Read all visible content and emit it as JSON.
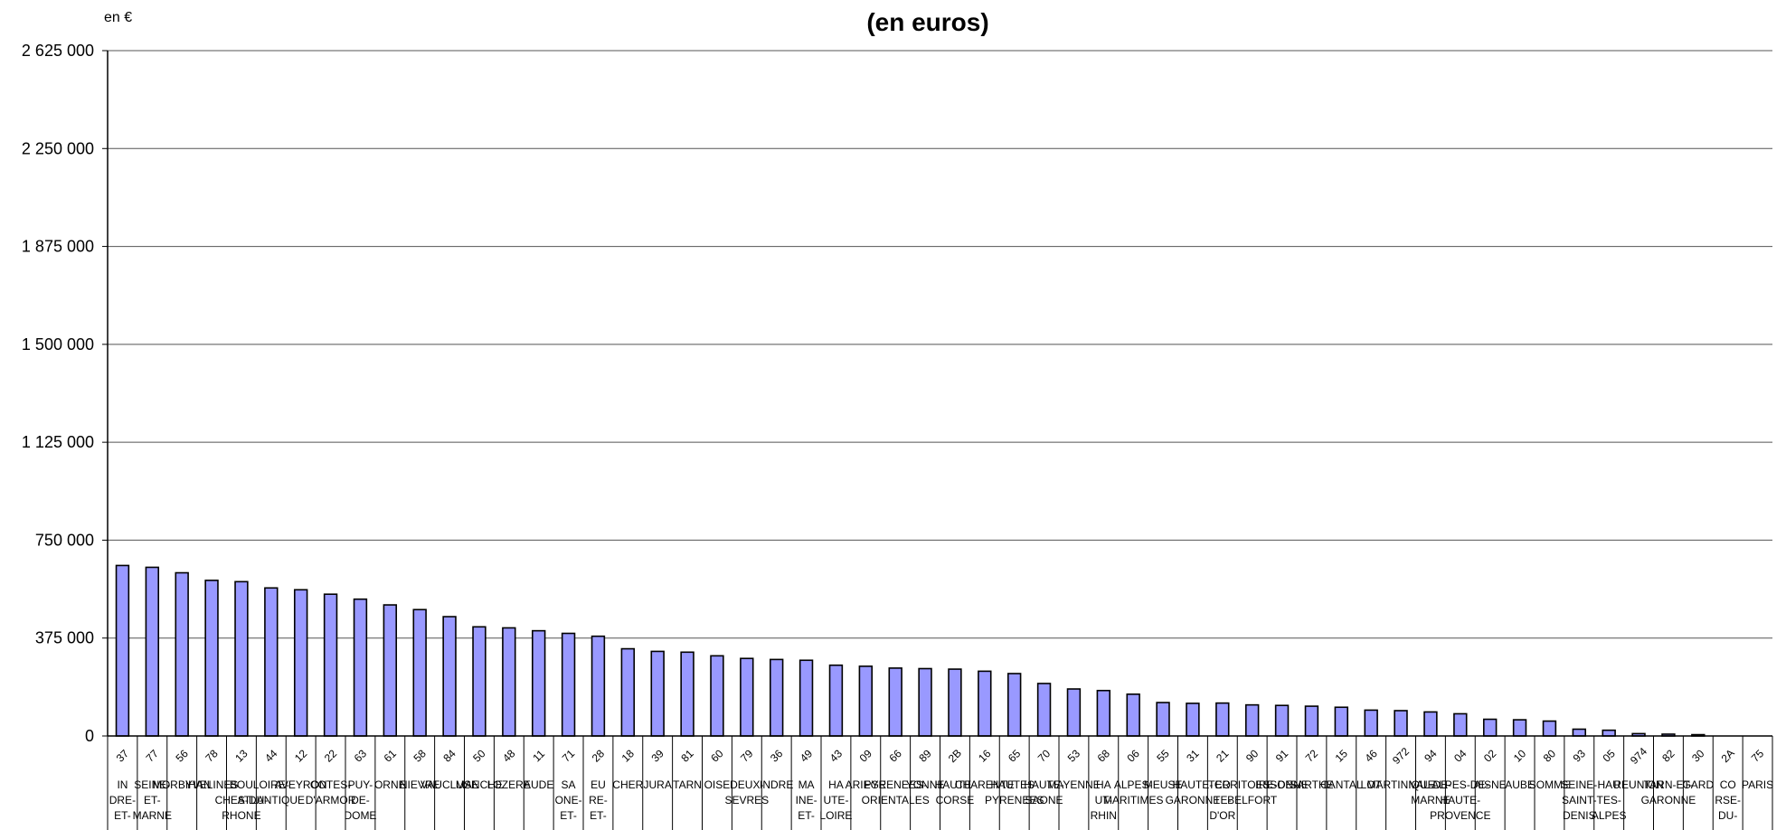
{
  "chart_data": {
    "type": "bar",
    "title": "(en euros)",
    "unit_label": "en €",
    "ylim": [
      0,
      2625000
    ],
    "yticks": [
      0,
      375000,
      750000,
      1125000,
      1500000,
      1875000,
      2250000,
      2625000
    ],
    "ytick_labels": [
      "0",
      "375 000",
      "750 000",
      "1 125 000",
      "1 500 000",
      "1 875 000",
      "2 250 000",
      "2 625 000"
    ],
    "grid": true,
    "bar_color": "#9999ff",
    "categories": [
      {
        "code": "37",
        "name": [
          "IN",
          "DRE-",
          "ET-"
        ]
      },
      {
        "code": "77",
        "name": [
          "SEINE-",
          "ET-",
          "MARNE"
        ]
      },
      {
        "code": "56",
        "name": [
          "MORBIHAN"
        ]
      },
      {
        "code": "78",
        "name": [
          "YVELINES"
        ]
      },
      {
        "code": "13",
        "name": [
          "BOU",
          "CHES-DU-",
          "RHONE"
        ]
      },
      {
        "code": "44",
        "name": [
          "LOIRE-",
          "ATLANTIQUE"
        ]
      },
      {
        "code": "12",
        "name": [
          "AVEYRON"
        ]
      },
      {
        "code": "22",
        "name": [
          "COTES-",
          "D'ARMOR"
        ]
      },
      {
        "code": "63",
        "name": [
          "PUY-",
          "DE-",
          "DOME"
        ]
      },
      {
        "code": "61",
        "name": [
          "ORNE"
        ]
      },
      {
        "code": "58",
        "name": [
          "NIEVRE"
        ]
      },
      {
        "code": "84",
        "name": [
          "VAUCLUSE"
        ]
      },
      {
        "code": "50",
        "name": [
          "MANCHE"
        ]
      },
      {
        "code": "48",
        "name": [
          "LOZERE"
        ]
      },
      {
        "code": "11",
        "name": [
          "AUDE"
        ]
      },
      {
        "code": "71",
        "name": [
          "SA",
          "ONE-",
          "ET-"
        ]
      },
      {
        "code": "28",
        "name": [
          "EU",
          "RE-",
          "ET-"
        ]
      },
      {
        "code": "18",
        "name": [
          "CHER"
        ]
      },
      {
        "code": "39",
        "name": [
          "JURA"
        ]
      },
      {
        "code": "81",
        "name": [
          "TARN"
        ]
      },
      {
        "code": "60",
        "name": [
          "OISE"
        ]
      },
      {
        "code": "79",
        "name": [
          "DEUX-",
          "SEVRES"
        ]
      },
      {
        "code": "36",
        "name": [
          "INDRE"
        ]
      },
      {
        "code": "49",
        "name": [
          "MA",
          "INE-",
          "ET-"
        ]
      },
      {
        "code": "43",
        "name": [
          "HA",
          "UTE-",
          "LOIRE"
        ]
      },
      {
        "code": "09",
        "name": [
          "ARIEGE"
        ]
      },
      {
        "code": "66",
        "name": [
          "PYRENEES-",
          "ORIENTALES"
        ]
      },
      {
        "code": "89",
        "name": [
          "YONNE"
        ]
      },
      {
        "code": "2B",
        "name": [
          "HAUTE-",
          "CORSE"
        ]
      },
      {
        "code": "16",
        "name": [
          "CHARENTE"
        ]
      },
      {
        "code": "65",
        "name": [
          "HAUTES-",
          "PYRENEES"
        ]
      },
      {
        "code": "70",
        "name": [
          "HAUTE-",
          "SAONE"
        ]
      },
      {
        "code": "53",
        "name": [
          "MAYENNE"
        ]
      },
      {
        "code": "68",
        "name": [
          "HA",
          "UT-",
          "RHIN"
        ]
      },
      {
        "code": "06",
        "name": [
          "ALPES-",
          "MARITIMES"
        ]
      },
      {
        "code": "55",
        "name": [
          "MEUSE"
        ]
      },
      {
        "code": "31",
        "name": [
          "HAUTE-",
          "GARONNE"
        ]
      },
      {
        "code": "21",
        "name": [
          "CO",
          "TE-",
          "D'OR"
        ]
      },
      {
        "code": "90",
        "name": [
          "TERRITOIRE-DE-",
          "BELFORT"
        ]
      },
      {
        "code": "91",
        "name": [
          "ESSONNE"
        ]
      },
      {
        "code": "72",
        "name": [
          "SARTHE"
        ]
      },
      {
        "code": "15",
        "name": [
          "CANTAL"
        ]
      },
      {
        "code": "46",
        "name": [
          "LOT"
        ]
      },
      {
        "code": "972",
        "name": [
          "MARTINIQUE"
        ]
      },
      {
        "code": "94",
        "name": [
          "VAL-DE-",
          "MARNE"
        ]
      },
      {
        "code": "04",
        "name": [
          "ALPES-DE-",
          "HAUTE-",
          "PROVENCE"
        ]
      },
      {
        "code": "02",
        "name": [
          "AISNE"
        ]
      },
      {
        "code": "10",
        "name": [
          "AUBE"
        ]
      },
      {
        "code": "80",
        "name": [
          "SOMME"
        ]
      },
      {
        "code": "93",
        "name": [
          "SEINE-",
          "SAINT-",
          "DENIS"
        ]
      },
      {
        "code": "05",
        "name": [
          "HAU",
          "TES-",
          "ALPES"
        ]
      },
      {
        "code": "974",
        "name": [
          "REUNION"
        ]
      },
      {
        "code": "82",
        "name": [
          "TARN-ET-",
          "GARONNE"
        ]
      },
      {
        "code": "30",
        "name": [
          "GARD"
        ]
      },
      {
        "code": "2A",
        "name": [
          "CO",
          "RSE-",
          "DU-"
        ]
      },
      {
        "code": "75",
        "name": [
          "PARIS"
        ]
      }
    ],
    "values": [
      653000,
      646000,
      625000,
      596000,
      591000,
      567000,
      560000,
      543000,
      524000,
      502000,
      484000,
      457000,
      418000,
      414000,
      403000,
      393000,
      382000,
      334000,
      324000,
      321000,
      307000,
      297000,
      293000,
      290000,
      271000,
      267000,
      260000,
      258000,
      256000,
      248000,
      239000,
      201000,
      180000,
      174000,
      160000,
      128000,
      125000,
      126000,
      119000,
      117000,
      114000,
      110000,
      99000,
      97000,
      92000,
      85000,
      64000,
      62000,
      57000,
      26000,
      22000,
      9000,
      7000,
      5000,
      0,
      0
    ]
  }
}
